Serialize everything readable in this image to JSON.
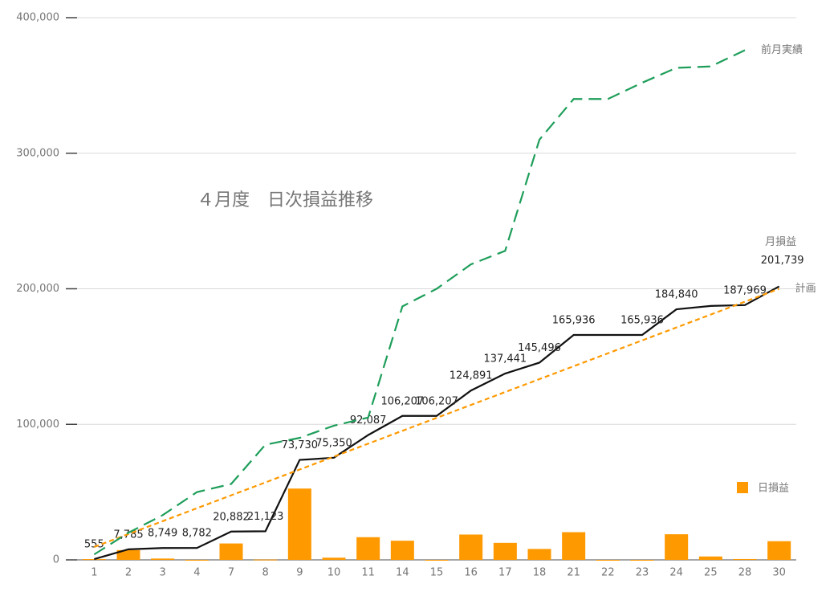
{
  "chart_data": {
    "type": "combo",
    "title": "４月度　日次損益推移",
    "categories": [
      "1",
      "2",
      "3",
      "4",
      "7",
      "8",
      "9",
      "10",
      "11",
      "14",
      "15",
      "16",
      "17",
      "18",
      "21",
      "22",
      "23",
      "24",
      "25",
      "28",
      "30"
    ],
    "ylim": [
      0,
      400000
    ],
    "yticks": [
      0,
      {
        "value": 100000,
        "label": "100,000"
      },
      {
        "value": 200000,
        "label": "200,000"
      },
      {
        "value": 300000,
        "label": "300,000"
      },
      {
        "value": 400000,
        "label": "400,000"
      }
    ],
    "grid": true,
    "legend": "right",
    "series": [
      {
        "name": "日損益",
        "type": "bar",
        "color": "#ff9900",
        "values": [
          555,
          7230,
          964,
          33,
          12100,
          241,
          52607,
          1620,
          16737,
          14120,
          0,
          18684,
          12550,
          8055,
          20440,
          0,
          0,
          18904,
          2500,
          629,
          13770
        ]
      },
      {
        "name": "月損益",
        "type": "line",
        "color": "#111111",
        "dash": "none",
        "values": [
          555,
          7785,
          8749,
          8782,
          20882,
          21123,
          73730,
          75350,
          92087,
          106207,
          106207,
          124891,
          137441,
          145496,
          165936,
          165936,
          165936,
          184840,
          187340,
          187969,
          201739
        ],
        "value_labels": [
          "555",
          "7,785",
          "8,749",
          "8,782",
          "20,882",
          "21,123",
          "73,730",
          "75,350",
          "92,087",
          "106,207",
          "106,207",
          "124,891",
          "137,441",
          "145,496",
          "165,936",
          null,
          "165,936",
          "184,840",
          null,
          "187,969",
          "201,739"
        ]
      },
      {
        "name": "計画",
        "type": "line",
        "color": "#ff9900",
        "dash": "6 4",
        "values": [
          9524,
          19048,
          28571,
          38095,
          47619,
          57143,
          66667,
          76190,
          85714,
          95238,
          104762,
          114286,
          123810,
          133333,
          142857,
          152381,
          161905,
          171429,
          180952,
          190476,
          200000
        ]
      },
      {
        "name": "前月実績",
        "type": "line",
        "color": "#1e9e5a",
        "dash": "16 8",
        "values": [
          4000,
          20000,
          33000,
          50000,
          56000,
          85000,
          90000,
          99000,
          105000,
          187000,
          200000,
          218000,
          228000,
          310000,
          340000,
          340000,
          352000,
          363000,
          364000,
          376000,
          null
        ]
      }
    ]
  }
}
